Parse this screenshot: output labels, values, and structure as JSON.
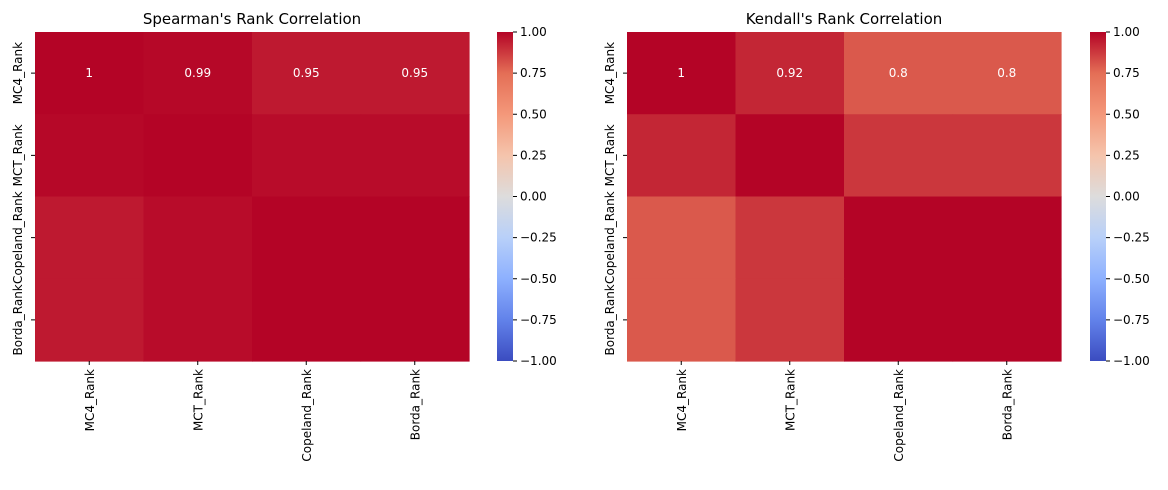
{
  "chart_data": [
    {
      "type": "heatmap",
      "title": "Spearman's Rank Correlation",
      "xlabel": "",
      "ylabel": "",
      "x_categories": [
        "MC4_Rank",
        "MCT_Rank",
        "Copeland_Rank",
        "Borda_Rank"
      ],
      "y_categories": [
        "MC4_Rank",
        "MCT_Rank",
        "Copeland_Rank",
        "Borda_Rank"
      ],
      "values": [
        [
          1.0,
          0.99,
          0.95,
          0.95
        ],
        [
          0.99,
          1.0,
          0.98,
          0.98
        ],
        [
          0.95,
          0.98,
          1.0,
          1.0
        ],
        [
          0.95,
          0.98,
          1.0,
          1.0
        ]
      ],
      "annotations": [
        [
          "1",
          "0.99",
          "0.95",
          "0.95"
        ],
        [
          "",
          "",
          "",
          ""
        ],
        [
          "",
          "",
          "",
          ""
        ],
        [
          "",
          "",
          "",
          ""
        ]
      ],
      "colormap": "coolwarm",
      "vmin": -1.0,
      "vmax": 1.0,
      "colorbar_ticks": [
        "1.00",
        "0.75",
        "0.50",
        "0.25",
        "0.00",
        "−0.25",
        "−0.50",
        "−0.75",
        "−1.00"
      ],
      "colorbar_tick_values": [
        1.0,
        0.75,
        0.5,
        0.25,
        0.0,
        -0.25,
        -0.5,
        -0.75,
        -1.0
      ]
    },
    {
      "type": "heatmap",
      "title": "Kendall's Rank Correlation",
      "xlabel": "",
      "ylabel": "",
      "x_categories": [
        "MC4_Rank",
        "MCT_Rank",
        "Copeland_Rank",
        "Borda_Rank"
      ],
      "y_categories": [
        "MC4_Rank",
        "MCT_Rank",
        "Copeland_Rank",
        "Borda_Rank"
      ],
      "values": [
        [
          1.0,
          0.92,
          0.8,
          0.8
        ],
        [
          0.92,
          1.0,
          0.88,
          0.88
        ],
        [
          0.8,
          0.88,
          1.0,
          1.0
        ],
        [
          0.8,
          0.88,
          1.0,
          1.0
        ]
      ],
      "annotations": [
        [
          "1",
          "0.92",
          "0.8",
          "0.8"
        ],
        [
          "",
          "",
          "",
          ""
        ],
        [
          "",
          "",
          "",
          ""
        ],
        [
          "",
          "",
          "",
          ""
        ]
      ],
      "colormap": "coolwarm",
      "vmin": -1.0,
      "vmax": 1.0,
      "colorbar_ticks": [
        "1.00",
        "0.75",
        "0.50",
        "0.25",
        "0.00",
        "−0.25",
        "−0.50",
        "−0.75",
        "−1.00"
      ],
      "colorbar_tick_values": [
        1.0,
        0.75,
        0.5,
        0.25,
        0.0,
        -0.25,
        -0.5,
        -0.75,
        -1.0
      ]
    }
  ]
}
